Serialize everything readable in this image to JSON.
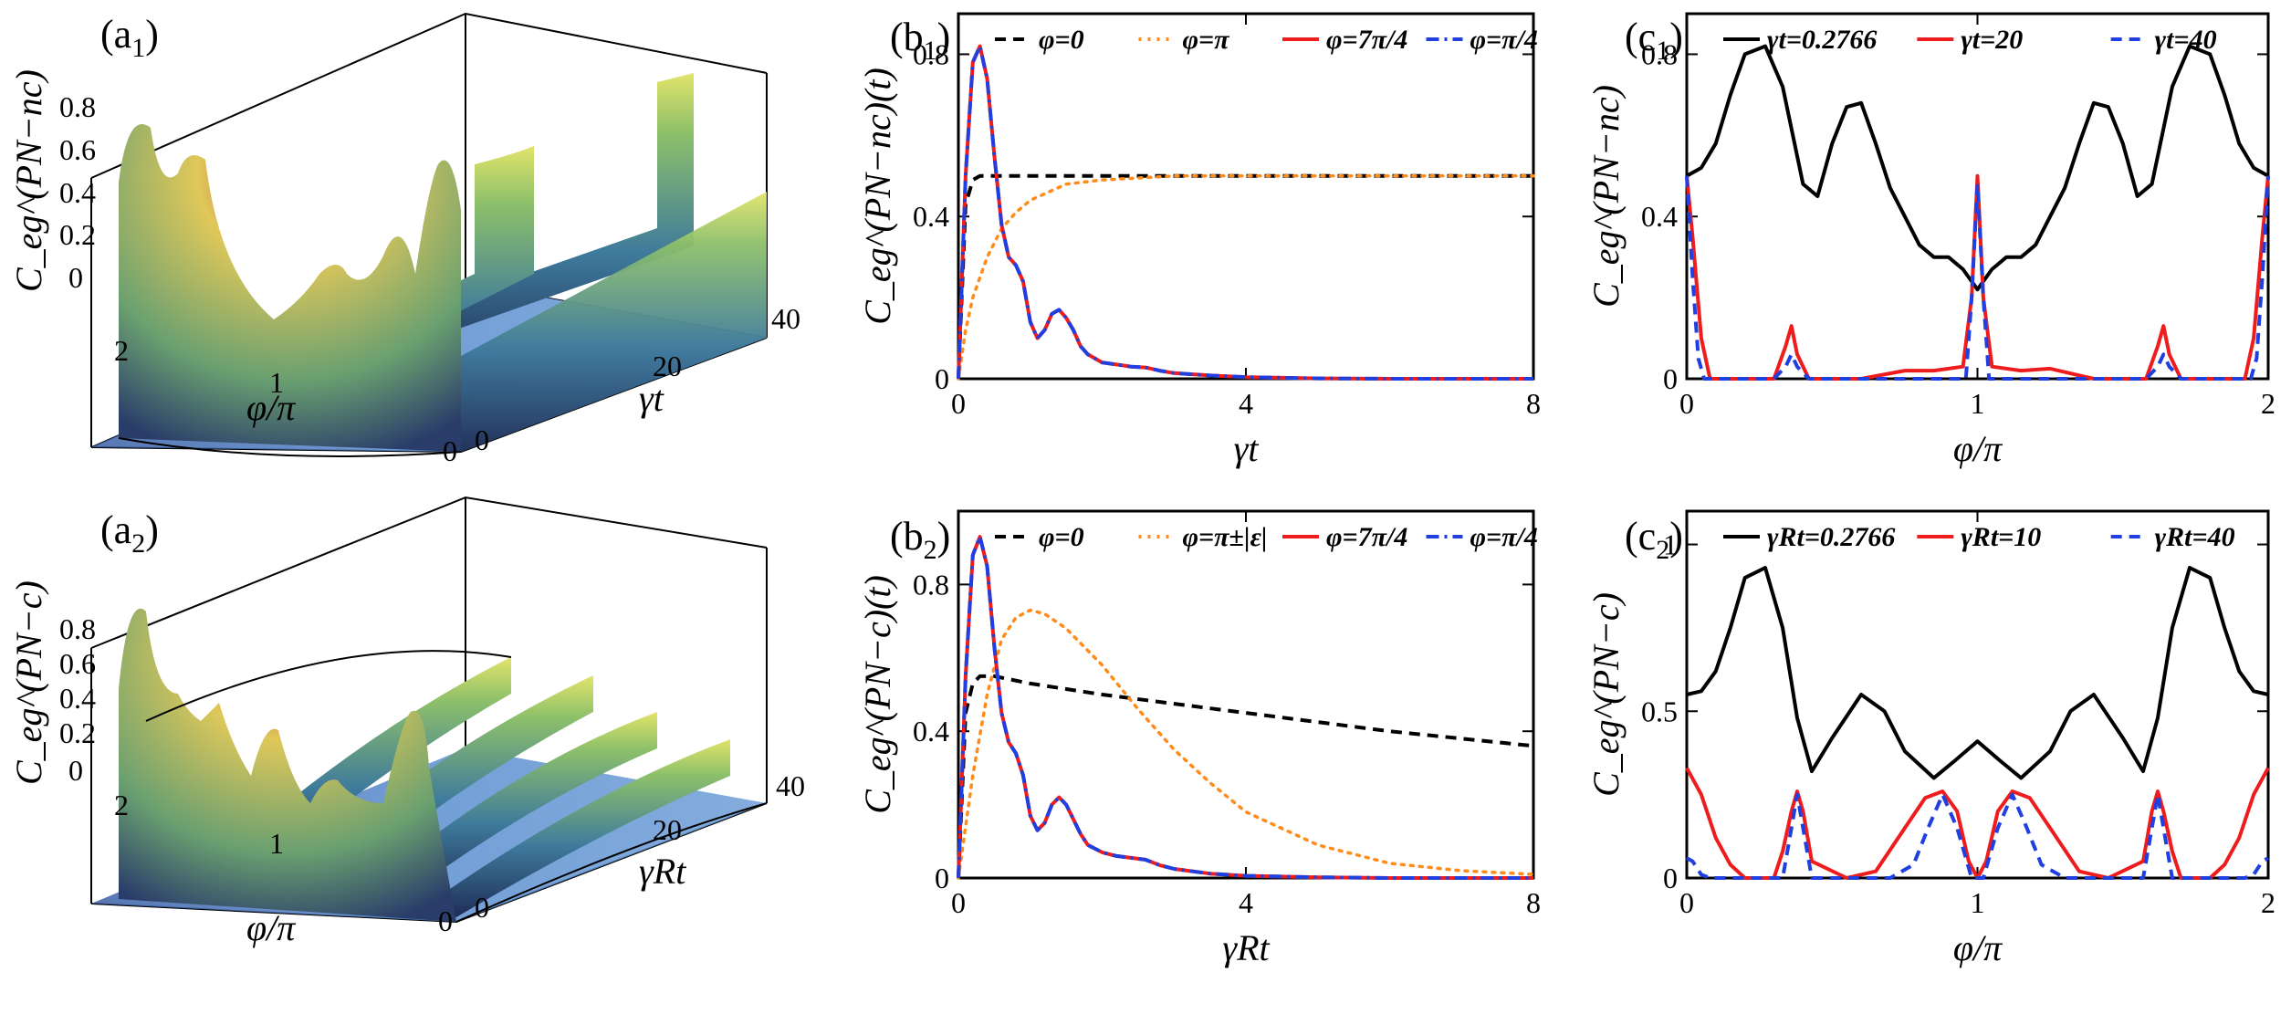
{
  "panel_labels": {
    "a1": "(a1)",
    "a2": "(a2)",
    "b1": "(b1)",
    "b2": "(b2)",
    "c1": "(c1)",
    "c2": "(c2)"
  },
  "surface_labels": {
    "a1": {
      "z_ticks": [
        "0",
        "0.2",
        "0.4",
        "0.6",
        "0.8"
      ],
      "phi_ticks": [
        "2",
        "1",
        "0"
      ],
      "t_ticks": [
        "0",
        "20",
        "40"
      ],
      "xlabel": "φ/π",
      "ylabel": "γt",
      "zlabel": "C_eg^(PN−nc)"
    },
    "a2": {
      "z_ticks": [
        "0",
        "0.2",
        "0.4",
        "0.6",
        "0.8"
      ],
      "phi_ticks": [
        "2",
        "1",
        "0"
      ],
      "t_ticks": [
        "0",
        "20",
        "40"
      ],
      "xlabel": "φ/π",
      "ylabel": "γRt",
      "zlabel": "C_eg^(PN−c)"
    }
  },
  "chart_data": [
    {
      "id": "b1",
      "type": "line",
      "xlabel": "γt",
      "ylabel": "C_eg^(PN−nc)(t)",
      "xlim": [
        0,
        8
      ],
      "ylim": [
        0,
        0.9
      ],
      "xticks": [
        "0",
        "4",
        "8"
      ],
      "yticks": [
        "0",
        "0.4",
        "0.8"
      ],
      "series": [
        {
          "name": "φ=0",
          "color": "#000000",
          "style": "dash",
          "x": [
            0,
            0.1,
            0.2,
            0.3,
            0.4,
            0.6,
            1,
            2,
            4,
            8
          ],
          "y": [
            0,
            0.43,
            0.49,
            0.5,
            0.5,
            0.5,
            0.5,
            0.5,
            0.5,
            0.5
          ]
        },
        {
          "name": "φ=π",
          "color": "#ff8c1a",
          "style": "dot",
          "x": [
            0,
            0.1,
            0.2,
            0.4,
            0.6,
            0.8,
            1,
            1.5,
            2,
            3,
            4,
            8
          ],
          "y": [
            0,
            0.12,
            0.2,
            0.3,
            0.37,
            0.41,
            0.44,
            0.48,
            0.49,
            0.5,
            0.5,
            0.5
          ]
        },
        {
          "name": "φ=7π/4",
          "color": "#ee1c1c",
          "style": "solid",
          "x": [
            0,
            0.1,
            0.2,
            0.3,
            0.4,
            0.5,
            0.6,
            0.7,
            0.8,
            0.9,
            1,
            1.1,
            1.2,
            1.3,
            1.4,
            1.5,
            1.6,
            1.7,
            1.8,
            2,
            2.2,
            2.4,
            2.6,
            2.8,
            3,
            3.5,
            4,
            5,
            6,
            8
          ],
          "y": [
            0,
            0.5,
            0.78,
            0.82,
            0.74,
            0.55,
            0.38,
            0.3,
            0.28,
            0.24,
            0.14,
            0.1,
            0.12,
            0.16,
            0.17,
            0.15,
            0.12,
            0.08,
            0.06,
            0.04,
            0.035,
            0.03,
            0.028,
            0.02,
            0.014,
            0.008,
            0.004,
            0.001,
            0,
            0
          ]
        },
        {
          "name": "φ=π/4",
          "color": "#1f3fe0",
          "style": "dashdot",
          "x": [
            0,
            0.1,
            0.2,
            0.3,
            0.4,
            0.5,
            0.6,
            0.7,
            0.8,
            0.9,
            1,
            1.1,
            1.2,
            1.3,
            1.4,
            1.5,
            1.6,
            1.7,
            1.8,
            2,
            2.2,
            2.4,
            2.6,
            2.8,
            3,
            3.5,
            4,
            5,
            6,
            8
          ],
          "y": [
            0,
            0.5,
            0.78,
            0.82,
            0.74,
            0.55,
            0.38,
            0.3,
            0.28,
            0.24,
            0.14,
            0.1,
            0.12,
            0.16,
            0.17,
            0.15,
            0.12,
            0.08,
            0.06,
            0.04,
            0.035,
            0.03,
            0.028,
            0.02,
            0.014,
            0.008,
            0.004,
            0.001,
            0,
            0
          ]
        }
      ]
    },
    {
      "id": "c1",
      "type": "line",
      "xlabel": "φ/π",
      "ylabel": "C_eg^(PN−nc)",
      "xlim": [
        0,
        2
      ],
      "ylim": [
        0,
        0.9
      ],
      "xticks": [
        "0",
        "1",
        "2"
      ],
      "yticks": [
        "0",
        "0.4",
        "0.8"
      ],
      "series": [
        {
          "name": "γt=0.2766",
          "color": "#000000",
          "style": "solid",
          "x": [
            0,
            0.05,
            0.1,
            0.15,
            0.2,
            0.27,
            0.33,
            0.4,
            0.45,
            0.5,
            0.55,
            0.6,
            0.65,
            0.7,
            0.75,
            0.8,
            0.85,
            0.9,
            0.95,
            1,
            1.05,
            1.1,
            1.15,
            1.2,
            1.25,
            1.3,
            1.35,
            1.4,
            1.45,
            1.5,
            1.55,
            1.6,
            1.67,
            1.73,
            1.8,
            1.85,
            1.9,
            1.95,
            2
          ],
          "y": [
            0.5,
            0.52,
            0.58,
            0.7,
            0.8,
            0.82,
            0.72,
            0.48,
            0.45,
            0.58,
            0.67,
            0.68,
            0.58,
            0.47,
            0.4,
            0.33,
            0.3,
            0.3,
            0.27,
            0.22,
            0.27,
            0.3,
            0.3,
            0.33,
            0.4,
            0.47,
            0.58,
            0.68,
            0.67,
            0.58,
            0.45,
            0.48,
            0.72,
            0.82,
            0.8,
            0.7,
            0.58,
            0.52,
            0.5
          ]
        },
        {
          "name": "γt=20",
          "color": "#ee1c1c",
          "style": "solid",
          "x": [
            0,
            0.02,
            0.05,
            0.08,
            0.1,
            0.3,
            0.34,
            0.36,
            0.38,
            0.42,
            0.6,
            0.75,
            0.85,
            0.95,
            0.98,
            1,
            1.02,
            1.05,
            1.15,
            1.25,
            1.4,
            1.58,
            1.62,
            1.64,
            1.66,
            1.7,
            1.9,
            1.92,
            1.95,
            1.98,
            2
          ],
          "y": [
            0.5,
            0.35,
            0.1,
            0,
            0,
            0,
            0.08,
            0.13,
            0.06,
            0,
            0,
            0.02,
            0.02,
            0.03,
            0.2,
            0.5,
            0.2,
            0.03,
            0.02,
            0.025,
            0,
            0,
            0.08,
            0.13,
            0.06,
            0,
            0,
            0,
            0.1,
            0.35,
            0.5
          ]
        },
        {
          "name": "γt=40",
          "color": "#1f3fe0",
          "style": "dash",
          "x": [
            0,
            0.02,
            0.04,
            0.06,
            0.3,
            0.34,
            0.36,
            0.38,
            0.42,
            0.96,
            0.98,
            1,
            1.02,
            1.04,
            1.58,
            1.62,
            1.64,
            1.66,
            1.7,
            1.94,
            1.96,
            1.98,
            2
          ],
          "y": [
            0.5,
            0.25,
            0.05,
            0,
            0,
            0.03,
            0.06,
            0.03,
            0,
            0,
            0.2,
            0.48,
            0.2,
            0,
            0,
            0.03,
            0.06,
            0.03,
            0,
            0,
            0.05,
            0.25,
            0.5
          ]
        }
      ]
    },
    {
      "id": "b2",
      "type": "line",
      "xlabel": "γRt",
      "ylabel": "C_eg^(PN−c)(t)",
      "xlim": [
        0,
        8
      ],
      "ylim": [
        0,
        1
      ],
      "xticks": [
        "0",
        "4",
        "8"
      ],
      "yticks": [
        "0",
        "0.4",
        "0.8"
      ],
      "series": [
        {
          "name": "φ=0",
          "color": "#000000",
          "style": "dash",
          "x": [
            0,
            0.1,
            0.2,
            0.3,
            0.5,
            1,
            2,
            4,
            6,
            8
          ],
          "y": [
            0,
            0.45,
            0.53,
            0.55,
            0.55,
            0.53,
            0.5,
            0.45,
            0.4,
            0.36
          ]
        },
        {
          "name": "φ=π±|ε|",
          "color": "#ff8c1a",
          "style": "dot",
          "x": [
            0,
            0.2,
            0.4,
            0.6,
            0.8,
            1,
            1.2,
            1.5,
            2,
            2.5,
            3,
            3.5,
            4,
            5,
            6,
            7,
            8
          ],
          "y": [
            0,
            0.28,
            0.5,
            0.65,
            0.71,
            0.73,
            0.72,
            0.68,
            0.58,
            0.46,
            0.35,
            0.26,
            0.18,
            0.09,
            0.04,
            0.02,
            0.01
          ]
        },
        {
          "name": "φ=7π/4",
          "color": "#ee1c1c",
          "style": "solid",
          "x": [
            0,
            0.1,
            0.2,
            0.3,
            0.4,
            0.5,
            0.6,
            0.7,
            0.8,
            0.9,
            1,
            1.1,
            1.2,
            1.3,
            1.4,
            1.5,
            1.6,
            1.7,
            1.8,
            2,
            2.2,
            2.4,
            2.6,
            2.8,
            3,
            3.5,
            4,
            5,
            6,
            8
          ],
          "y": [
            0,
            0.55,
            0.88,
            0.93,
            0.85,
            0.63,
            0.45,
            0.37,
            0.34,
            0.28,
            0.17,
            0.13,
            0.15,
            0.2,
            0.22,
            0.2,
            0.16,
            0.12,
            0.09,
            0.07,
            0.06,
            0.055,
            0.05,
            0.035,
            0.025,
            0.012,
            0.006,
            0.002,
            0,
            0
          ]
        },
        {
          "name": "φ=π/4",
          "color": "#1f3fe0",
          "style": "dashdot",
          "x": [
            0,
            0.1,
            0.2,
            0.3,
            0.4,
            0.5,
            0.6,
            0.7,
            0.8,
            0.9,
            1,
            1.1,
            1.2,
            1.3,
            1.4,
            1.5,
            1.6,
            1.7,
            1.8,
            2,
            2.2,
            2.4,
            2.6,
            2.8,
            3,
            3.5,
            4,
            5,
            6,
            8
          ],
          "y": [
            0,
            0.55,
            0.88,
            0.93,
            0.85,
            0.63,
            0.45,
            0.37,
            0.34,
            0.28,
            0.17,
            0.13,
            0.15,
            0.2,
            0.22,
            0.2,
            0.16,
            0.12,
            0.09,
            0.07,
            0.06,
            0.055,
            0.05,
            0.035,
            0.025,
            0.012,
            0.006,
            0.002,
            0,
            0
          ]
        }
      ]
    },
    {
      "id": "c2",
      "type": "line",
      "xlabel": "φ/π",
      "ylabel": "C_eg^(PN−c)",
      "xlim": [
        0,
        2
      ],
      "ylim": [
        0,
        1.1
      ],
      "xticks": [
        "0",
        "1",
        "2"
      ],
      "yticks": [
        "0",
        "0.5",
        "1"
      ],
      "series": [
        {
          "name": "γRt=0.2766",
          "color": "#000000",
          "style": "solid",
          "x": [
            0,
            0.05,
            0.1,
            0.15,
            0.2,
            0.27,
            0.33,
            0.38,
            0.43,
            0.5,
            0.6,
            0.68,
            0.75,
            0.85,
            0.92,
            1,
            1.08,
            1.15,
            1.25,
            1.32,
            1.4,
            1.5,
            1.57,
            1.62,
            1.67,
            1.73,
            1.8,
            1.85,
            1.9,
            1.95,
            2
          ],
          "y": [
            0.55,
            0.56,
            0.62,
            0.75,
            0.9,
            0.93,
            0.75,
            0.48,
            0.32,
            0.42,
            0.55,
            0.5,
            0.38,
            0.3,
            0.35,
            0.41,
            0.35,
            0.3,
            0.38,
            0.5,
            0.55,
            0.42,
            0.32,
            0.48,
            0.75,
            0.93,
            0.9,
            0.75,
            0.62,
            0.56,
            0.55
          ]
        },
        {
          "name": "γRt=10",
          "color": "#ee1c1c",
          "style": "solid",
          "x": [
            0,
            0.05,
            0.1,
            0.15,
            0.2,
            0.3,
            0.33,
            0.36,
            0.38,
            0.4,
            0.43,
            0.55,
            0.65,
            0.75,
            0.82,
            0.88,
            0.93,
            0.97,
            1,
            1.03,
            1.07,
            1.12,
            1.18,
            1.25,
            1.35,
            1.45,
            1.57,
            1.6,
            1.62,
            1.64,
            1.67,
            1.7,
            1.8,
            1.85,
            1.9,
            1.95,
            2
          ],
          "y": [
            0.33,
            0.25,
            0.12,
            0.04,
            0,
            0,
            0.08,
            0.2,
            0.26,
            0.2,
            0.05,
            0,
            0.02,
            0.15,
            0.24,
            0.26,
            0.2,
            0.05,
            0,
            0.05,
            0.2,
            0.26,
            0.24,
            0.15,
            0.02,
            0,
            0.05,
            0.2,
            0.26,
            0.2,
            0.08,
            0,
            0,
            0.04,
            0.12,
            0.25,
            0.33
          ]
        },
        {
          "name": "γRt=40",
          "color": "#1f3fe0",
          "style": "dash",
          "x": [
            0,
            0.02,
            0.05,
            0.08,
            0.33,
            0.36,
            0.38,
            0.4,
            0.43,
            0.7,
            0.78,
            0.83,
            0.88,
            0.93,
            0.98,
            1.02,
            1.07,
            1.12,
            1.17,
            1.22,
            1.3,
            1.57,
            1.6,
            1.62,
            1.64,
            1.67,
            1.92,
            1.95,
            1.98,
            2
          ],
          "y": [
            0.06,
            0.05,
            0.01,
            0,
            0,
            0.15,
            0.25,
            0.15,
            0,
            0,
            0.04,
            0.15,
            0.25,
            0.15,
            0,
            0,
            0.15,
            0.25,
            0.15,
            0.04,
            0,
            0,
            0.15,
            0.25,
            0.15,
            0,
            0,
            0.01,
            0.05,
            0.06
          ]
        }
      ]
    }
  ]
}
